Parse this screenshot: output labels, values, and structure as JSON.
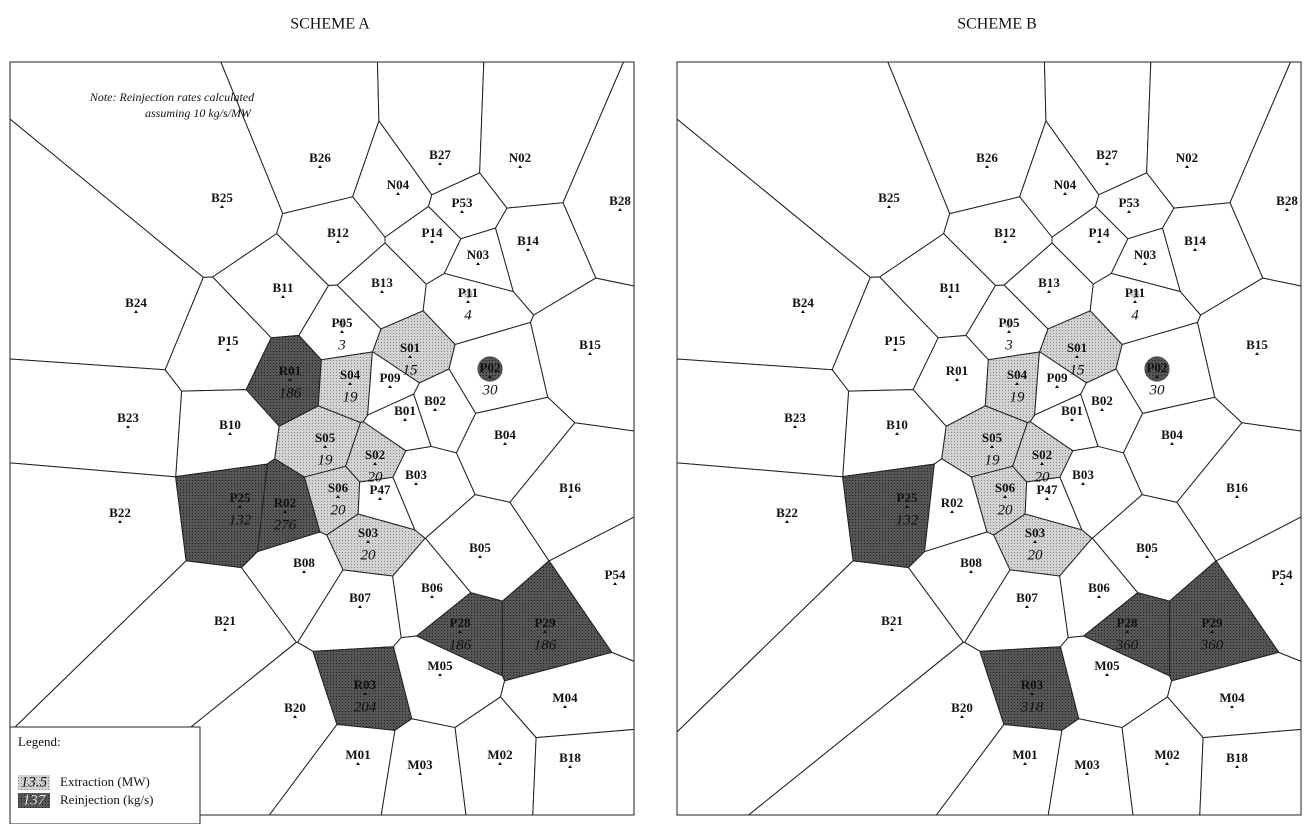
{
  "note": [
    "Note: Reinjection rates calculated",
    "assuming 10 kg/s/MW"
  ],
  "legend": {
    "title": "Legend:",
    "items": [
      {
        "sample": "13.5",
        "label": "Extraction (MW)"
      },
      {
        "sample": "137",
        "label": "Reinjection (kg/s)"
      }
    ]
  },
  "panels": [
    {
      "title": "SCHEME A",
      "cells": [
        {
          "label": "B26"
        },
        {
          "label": "B27"
        },
        {
          "label": "N02"
        },
        {
          "label": "B25"
        },
        {
          "label": "N04"
        },
        {
          "label": "P53"
        },
        {
          "label": "B28"
        },
        {
          "label": "B12"
        },
        {
          "label": "P14"
        },
        {
          "label": "B14"
        },
        {
          "label": "N03"
        },
        {
          "label": "B13"
        },
        {
          "label": "P11",
          "extraction": 4
        },
        {
          "label": "B11"
        },
        {
          "label": "B24"
        },
        {
          "label": "P05",
          "extraction": 3
        },
        {
          "label": "S01",
          "extraction": 15
        },
        {
          "label": "P02",
          "extraction": 30
        },
        {
          "label": "B15"
        },
        {
          "label": "P15"
        },
        {
          "label": "R01",
          "reinjection": 186
        },
        {
          "label": "S04",
          "extraction": 19
        },
        {
          "label": "P09"
        },
        {
          "label": "B01"
        },
        {
          "label": "B02"
        },
        {
          "label": "B10"
        },
        {
          "label": "B23"
        },
        {
          "label": "S05",
          "extraction": 19
        },
        {
          "label": "S02",
          "extraction": 20
        },
        {
          "label": "B04"
        },
        {
          "label": "B03"
        },
        {
          "label": "S06",
          "extraction": 20
        },
        {
          "label": "P47"
        },
        {
          "label": "P25",
          "reinjection": 132
        },
        {
          "label": "R02",
          "reinjection": 276
        },
        {
          "label": "B16"
        },
        {
          "label": "B22"
        },
        {
          "label": "S03",
          "extraction": 20
        },
        {
          "label": "B05"
        },
        {
          "label": "B08"
        },
        {
          "label": "P54"
        },
        {
          "label": "B07"
        },
        {
          "label": "B06"
        },
        {
          "label": "P28",
          "reinjection": 186
        },
        {
          "label": "P29",
          "reinjection": 186
        },
        {
          "label": "B21"
        },
        {
          "label": "M05"
        },
        {
          "label": "R03",
          "reinjection": 204
        },
        {
          "label": "M04"
        },
        {
          "label": "B20"
        },
        {
          "label": "M01"
        },
        {
          "label": "M03"
        },
        {
          "label": "M02"
        },
        {
          "label": "B18"
        }
      ]
    },
    {
      "title": "SCHEME B",
      "cells": [
        {
          "label": "B26"
        },
        {
          "label": "B27"
        },
        {
          "label": "N02"
        },
        {
          "label": "B25"
        },
        {
          "label": "N04"
        },
        {
          "label": "P53"
        },
        {
          "label": "B28"
        },
        {
          "label": "B12"
        },
        {
          "label": "P14"
        },
        {
          "label": "B14"
        },
        {
          "label": "N03"
        },
        {
          "label": "B13"
        },
        {
          "label": "P11",
          "extraction": 4
        },
        {
          "label": "B11"
        },
        {
          "label": "B24"
        },
        {
          "label": "P05",
          "extraction": 3
        },
        {
          "label": "S01",
          "extraction": 15
        },
        {
          "label": "P02",
          "extraction": 30
        },
        {
          "label": "B15"
        },
        {
          "label": "P15"
        },
        {
          "label": "R01"
        },
        {
          "label": "S04",
          "extraction": 19
        },
        {
          "label": "P09"
        },
        {
          "label": "B01"
        },
        {
          "label": "B02"
        },
        {
          "label": "B10"
        },
        {
          "label": "B23"
        },
        {
          "label": "S05",
          "extraction": 19
        },
        {
          "label": "S02",
          "extraction": 20
        },
        {
          "label": "B04"
        },
        {
          "label": "B03"
        },
        {
          "label": "S06",
          "extraction": 20
        },
        {
          "label": "P47"
        },
        {
          "label": "P25",
          "reinjection": 132
        },
        {
          "label": "R02"
        },
        {
          "label": "B16"
        },
        {
          "label": "B22"
        },
        {
          "label": "S03",
          "extraction": 20
        },
        {
          "label": "B05"
        },
        {
          "label": "B08"
        },
        {
          "label": "P54"
        },
        {
          "label": "B07"
        },
        {
          "label": "B06"
        },
        {
          "label": "P28",
          "reinjection": 360
        },
        {
          "label": "P29",
          "reinjection": 360
        },
        {
          "label": "B21"
        },
        {
          "label": "M05"
        },
        {
          "label": "R03",
          "reinjection": 318
        },
        {
          "label": "M04"
        },
        {
          "label": "B20"
        },
        {
          "label": "M01"
        },
        {
          "label": "M03"
        },
        {
          "label": "M02"
        },
        {
          "label": "B18"
        }
      ]
    }
  ]
}
